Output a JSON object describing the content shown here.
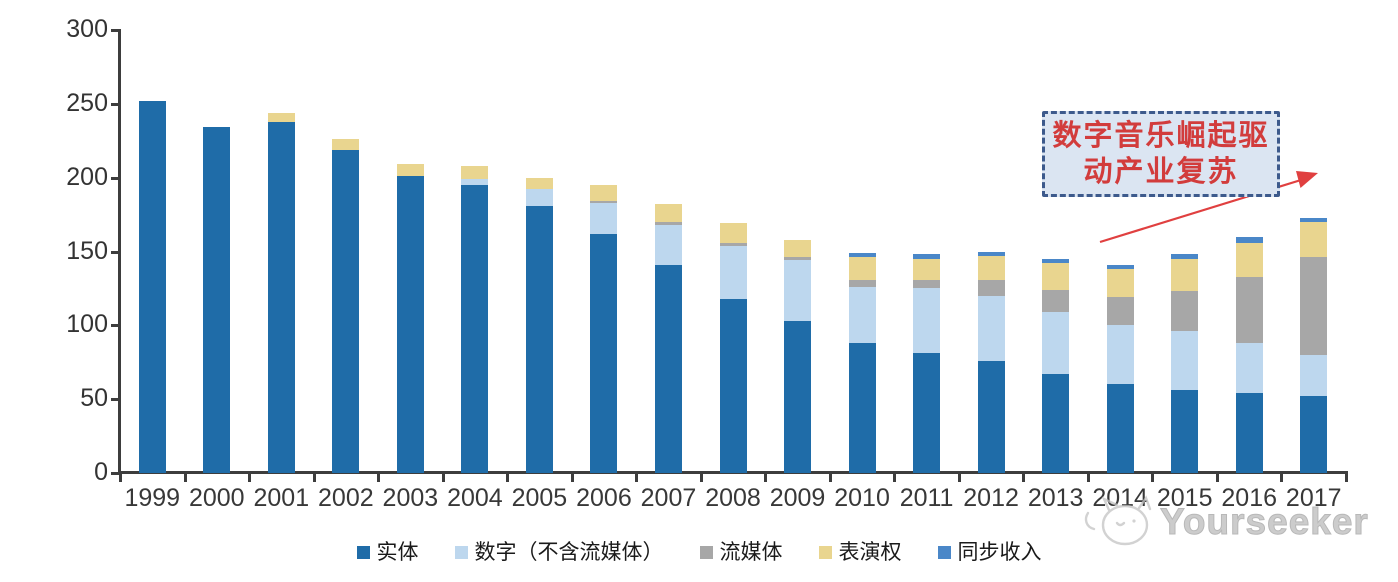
{
  "chart_data": {
    "type": "bar",
    "stacked": true,
    "title": "",
    "xlabel": "",
    "ylabel": "",
    "ylim": [
      0,
      300
    ],
    "yticks": [
      0,
      50,
      100,
      150,
      200,
      250,
      300
    ],
    "grid": false,
    "legend_position": "bottom",
    "categories": [
      "1999",
      "2000",
      "2001",
      "2002",
      "2003",
      "2004",
      "2005",
      "2006",
      "2007",
      "2008",
      "2009",
      "2010",
      "2011",
      "2012",
      "2013",
      "2014",
      "2015",
      "2016",
      "2017"
    ],
    "series": [
      {
        "name": "实体",
        "color": "#1f6ca8",
        "values": [
          252,
          234,
          238,
          219,
          201,
          195,
          181,
          162,
          141,
          118,
          103,
          88,
          81,
          76,
          67,
          60,
          56,
          54,
          52
        ]
      },
      {
        "name": "数字（不含流媒体）",
        "color": "#bdd7ee",
        "values": [
          0,
          0,
          0,
          0,
          0,
          4,
          11,
          21,
          27,
          36,
          41,
          38,
          44,
          44,
          42,
          40,
          40,
          34,
          28
        ]
      },
      {
        "name": "流媒体",
        "color": "#a7a7a7",
        "values": [
          0,
          0,
          0,
          0,
          0,
          0,
          0,
          1,
          2,
          2,
          2,
          5,
          6,
          11,
          15,
          19,
          27,
          45,
          66
        ]
      },
      {
        "name": "表演权",
        "color": "#e9d58f",
        "values": [
          0,
          0,
          6,
          7,
          8,
          9,
          8,
          11,
          12,
          13,
          12,
          15,
          14,
          16,
          18,
          19,
          22,
          23,
          24
        ]
      },
      {
        "name": "同步收入",
        "color": "#4a87c8",
        "values": [
          0,
          0,
          0,
          0,
          0,
          0,
          0,
          0,
          0,
          0,
          0,
          3,
          3,
          3,
          3,
          3,
          3,
          4,
          3
        ]
      }
    ]
  },
  "annotation": {
    "line1": "数字音乐崛起驱",
    "line2": "动产业复苏",
    "text_color": "#d23c3c",
    "border_color": "#3d5a8c",
    "fill_color": "#dbe5f2",
    "arrow_color": "#e04040"
  },
  "watermark": {
    "text": "Yourseeker",
    "logo": "cat-face-icon",
    "color": "#c4c4c4"
  },
  "axis": {
    "line_color": "#3d3d3d",
    "label_color": "#383838"
  }
}
